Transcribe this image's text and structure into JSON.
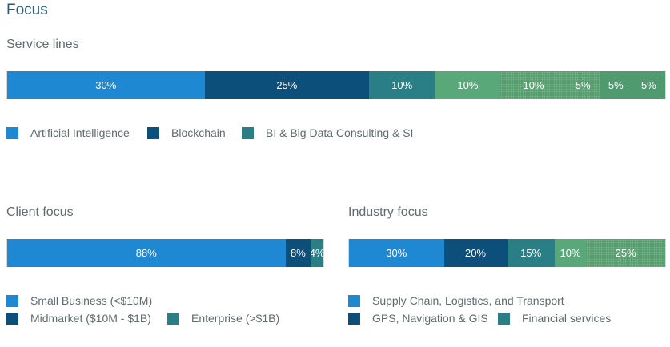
{
  "page": {
    "title": "Focus"
  },
  "colors": {
    "c1": "#1f88d2",
    "c2": "#0b4f7a",
    "c3": "#2a7f86",
    "c4": "#58a87a",
    "c5": "#569e6e",
    "c6": "#4f9a6e"
  },
  "service_lines": {
    "label": "Service lines",
    "segments": [
      {
        "label": "30%",
        "value": 30
      },
      {
        "label": "25%",
        "value": 25
      },
      {
        "label": "10%",
        "value": 10
      },
      {
        "label": "10%",
        "value": 10
      },
      {
        "label": "10%",
        "value": 10
      },
      {
        "label": "5%",
        "value": 5
      },
      {
        "label": "5%",
        "value": 5
      },
      {
        "label": "5%",
        "value": 5
      }
    ],
    "legend": [
      "Artificial Intelligence",
      "Blockchain",
      "BI & Big Data Consulting & SI"
    ]
  },
  "client_focus": {
    "label": "Client focus",
    "segments": [
      {
        "label": "88%",
        "value": 88
      },
      {
        "label": "8%",
        "value": 8
      },
      {
        "label": "4%",
        "value": 4
      }
    ],
    "legend": [
      "Small Business (<$10M)",
      "Midmarket ($10M - $1B)",
      "Enterprise (>$1B)"
    ]
  },
  "industry_focus": {
    "label": "Industry focus",
    "segments": [
      {
        "label": "30%",
        "value": 30
      },
      {
        "label": "20%",
        "value": 20
      },
      {
        "label": "15%",
        "value": 15
      },
      {
        "label": "10%",
        "value": 10
      },
      {
        "label": "25%",
        "value": 25
      }
    ],
    "legend": [
      "Supply Chain, Logistics, and Transport",
      "GPS, Navigation & GIS",
      "Financial services"
    ]
  }
}
